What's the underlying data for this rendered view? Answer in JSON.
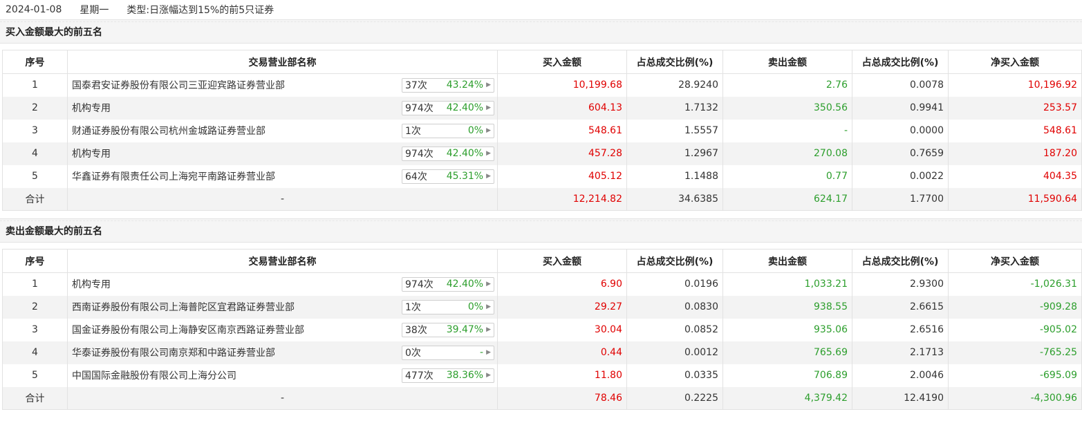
{
  "header": {
    "date": "2024-01-08",
    "weekday": "星期一",
    "type_label": "类型:",
    "type_value": "日涨幅达到15%的前5只证券"
  },
  "columns": {
    "idx": "序号",
    "name": "交易营业部名称",
    "buy": "买入金额",
    "buy_ratio": "占总成交比例(%)",
    "sell": "卖出金额",
    "sell_ratio": "占总成交比例(%)",
    "net": "净买入金额"
  },
  "buy_top5": {
    "title": "买入金额最大的前五名",
    "rows": [
      {
        "idx": "1",
        "name": "国泰君安证券股份有限公司三亚迎宾路证券营业部",
        "count": "37次",
        "rate": "43.24%",
        "buy": "10,199.68",
        "buy_ratio": "28.9240",
        "sell": "2.76",
        "sell_ratio": "0.0078",
        "net": "10,196.92"
      },
      {
        "idx": "2",
        "name": "机构专用",
        "count": "974次",
        "rate": "42.40%",
        "buy": "604.13",
        "buy_ratio": "1.7132",
        "sell": "350.56",
        "sell_ratio": "0.9941",
        "net": "253.57"
      },
      {
        "idx": "3",
        "name": "财通证券股份有限公司杭州金城路证券营业部",
        "count": "1次",
        "rate": "0%",
        "buy": "548.61",
        "buy_ratio": "1.5557",
        "sell": "-",
        "sell_ratio": "0.0000",
        "net": "548.61"
      },
      {
        "idx": "4",
        "name": "机构专用",
        "count": "974次",
        "rate": "42.40%",
        "buy": "457.28",
        "buy_ratio": "1.2967",
        "sell": "270.08",
        "sell_ratio": "0.7659",
        "net": "187.20"
      },
      {
        "idx": "5",
        "name": "华鑫证券有限责任公司上海宛平南路证券营业部",
        "count": "64次",
        "rate": "45.31%",
        "buy": "405.12",
        "buy_ratio": "1.1488",
        "sell": "0.77",
        "sell_ratio": "0.0022",
        "net": "404.35"
      }
    ],
    "total": {
      "label": "合计",
      "name": "-",
      "buy": "12,214.82",
      "buy_ratio": "34.6385",
      "sell": "624.17",
      "sell_ratio": "1.7700",
      "net": "11,590.64"
    }
  },
  "sell_top5": {
    "title": "卖出金额最大的前五名",
    "rows": [
      {
        "idx": "1",
        "name": "机构专用",
        "count": "974次",
        "rate": "42.40%",
        "buy": "6.90",
        "buy_ratio": "0.0196",
        "sell": "1,033.21",
        "sell_ratio": "2.9300",
        "net": "-1,026.31"
      },
      {
        "idx": "2",
        "name": "西南证券股份有限公司上海普陀区宜君路证券营业部",
        "count": "1次",
        "rate": "0%",
        "buy": "29.27",
        "buy_ratio": "0.0830",
        "sell": "938.55",
        "sell_ratio": "2.6615",
        "net": "-909.28"
      },
      {
        "idx": "3",
        "name": "国金证券股份有限公司上海静安区南京西路证券营业部",
        "count": "38次",
        "rate": "39.47%",
        "buy": "30.04",
        "buy_ratio": "0.0852",
        "sell": "935.06",
        "sell_ratio": "2.6516",
        "net": "-905.02"
      },
      {
        "idx": "4",
        "name": "华泰证券股份有限公司南京郑和中路证券营业部",
        "count": "0次",
        "rate": "-",
        "buy": "0.44",
        "buy_ratio": "0.0012",
        "sell": "765.69",
        "sell_ratio": "2.1713",
        "net": "-765.25"
      },
      {
        "idx": "5",
        "name": "中国国际金融股份有限公司上海分公司",
        "count": "477次",
        "rate": "38.36%",
        "buy": "11.80",
        "buy_ratio": "0.0335",
        "sell": "706.89",
        "sell_ratio": "2.0046",
        "net": "-695.09"
      }
    ],
    "total": {
      "label": "合计",
      "name": "-",
      "buy": "78.46",
      "buy_ratio": "0.2225",
      "sell": "4,379.42",
      "sell_ratio": "12.4190",
      "net": "-4,300.96"
    }
  },
  "colors": {
    "positive": "#e00000",
    "negative": "#2c9e2c"
  }
}
